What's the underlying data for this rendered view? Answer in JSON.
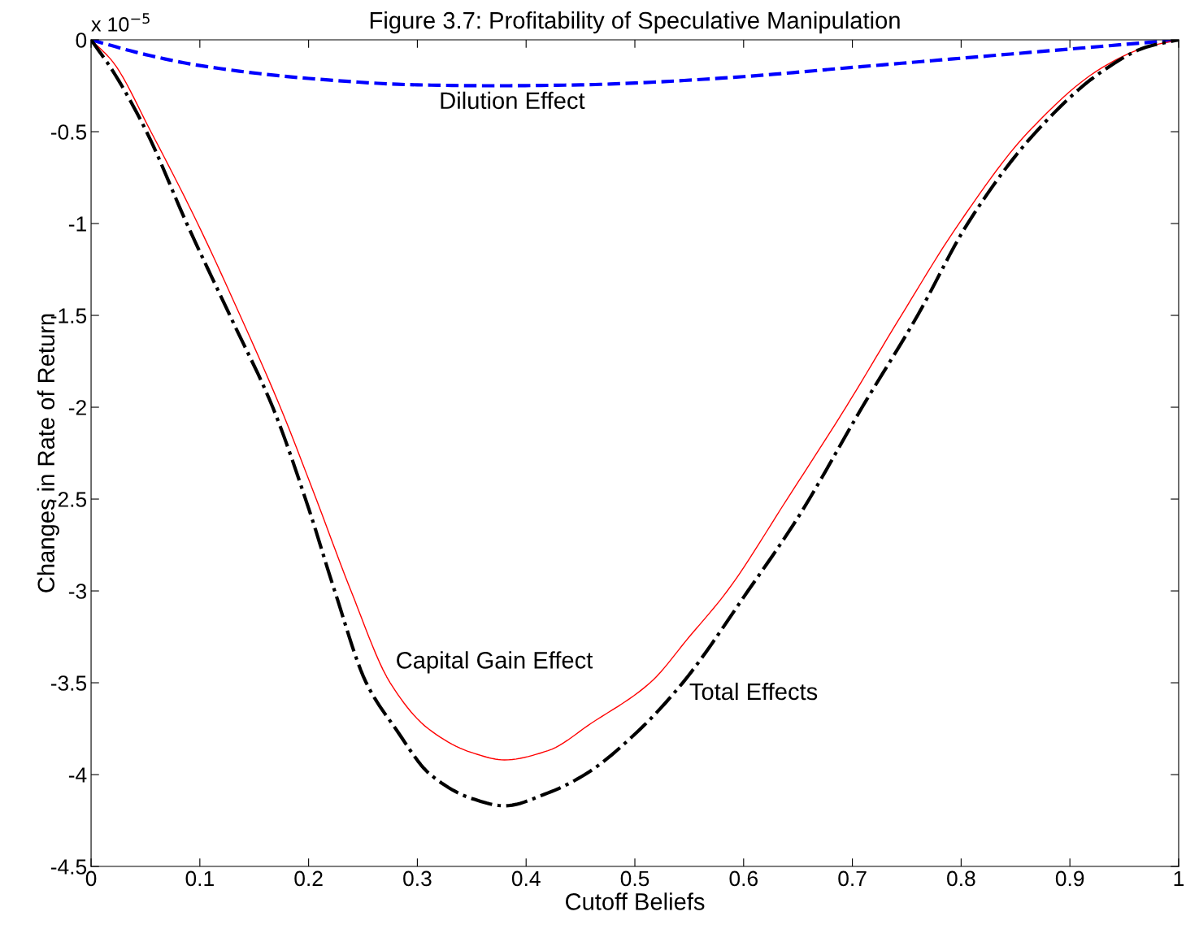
{
  "chart_data": {
    "type": "line",
    "title": "Figure 3.7: Profitability of Speculative Manipulation",
    "xlabel": "Cutoff Beliefs",
    "ylabel": "Changes in Rate of Return",
    "xlim": [
      0,
      1
    ],
    "xticks": [
      0,
      0.1,
      0.2,
      0.3,
      0.4,
      0.5,
      0.6,
      0.7,
      0.8,
      0.9,
      1
    ],
    "ylim": [
      -4.5,
      0
    ],
    "yticks": [
      0,
      -0.5,
      -1,
      -1.5,
      -2,
      -2.5,
      -3,
      -3.5,
      -4,
      -4.5
    ],
    "series": [
      {
        "color": "#0000ff",
        "line_style": "dashed",
        "x": [
          0,
          0.05,
          0.1,
          0.2,
          0.3,
          0.37,
          0.45,
          0.5,
          0.6,
          0.7,
          0.8,
          0.9,
          1
        ],
        "values": [
          0,
          -0.08,
          -0.14,
          -0.21,
          -0.245,
          -0.25,
          -0.245,
          -0.235,
          -0.2,
          -0.15,
          -0.1,
          -0.05,
          0
        ]
      },
      {
        "color": "#ff0000",
        "line_style": "solid",
        "x": [
          0,
          0.02,
          0.055,
          0.098,
          0.137,
          0.174,
          0.207,
          0.239,
          0.275,
          0.31,
          0.35,
          0.38,
          0.42,
          0.46,
          0.514,
          0.55,
          0.585,
          0.64,
          0.694,
          0.745,
          0.798,
          0.862,
          0.93,
          0.97,
          1
        ],
        "values": [
          0,
          -0.12,
          -0.5,
          -1,
          -1.5,
          -2,
          -2.5,
          -3,
          -3.5,
          -3.75,
          -3.88,
          -3.92,
          -3.87,
          -3.72,
          -3.5,
          -3.25,
          -3,
          -2.5,
          -2,
          -1.5,
          -1,
          -0.5,
          -0.15,
          -0.04,
          0
        ]
      },
      {
        "color": "#000000",
        "line_style": "dashdot",
        "x": [
          0,
          0.02,
          0.051,
          0.088,
          0.13,
          0.167,
          0.2,
          0.224,
          0.253,
          0.28,
          0.312,
          0.35,
          0.38,
          0.42,
          0.454,
          0.5,
          0.544,
          0.604,
          0.65,
          0.709,
          0.76,
          0.806,
          0.869,
          0.93,
          0.97,
          1
        ],
        "values": [
          0,
          -0.17,
          -0.5,
          -1,
          -1.53,
          -2,
          -2.55,
          -3,
          -3.5,
          -3.75,
          -4,
          -4.13,
          -4.17,
          -4.1,
          -4,
          -3.78,
          -3.5,
          -3,
          -2.6,
          -2,
          -1.5,
          -1,
          -0.5,
          -0.17,
          -0.04,
          0
        ]
      }
    ],
    "annotations": [
      "x 10$^{−5}$",
      "Dilution Effect",
      "Capital Gain Effect",
      "Total Effects"
    ]
  }
}
